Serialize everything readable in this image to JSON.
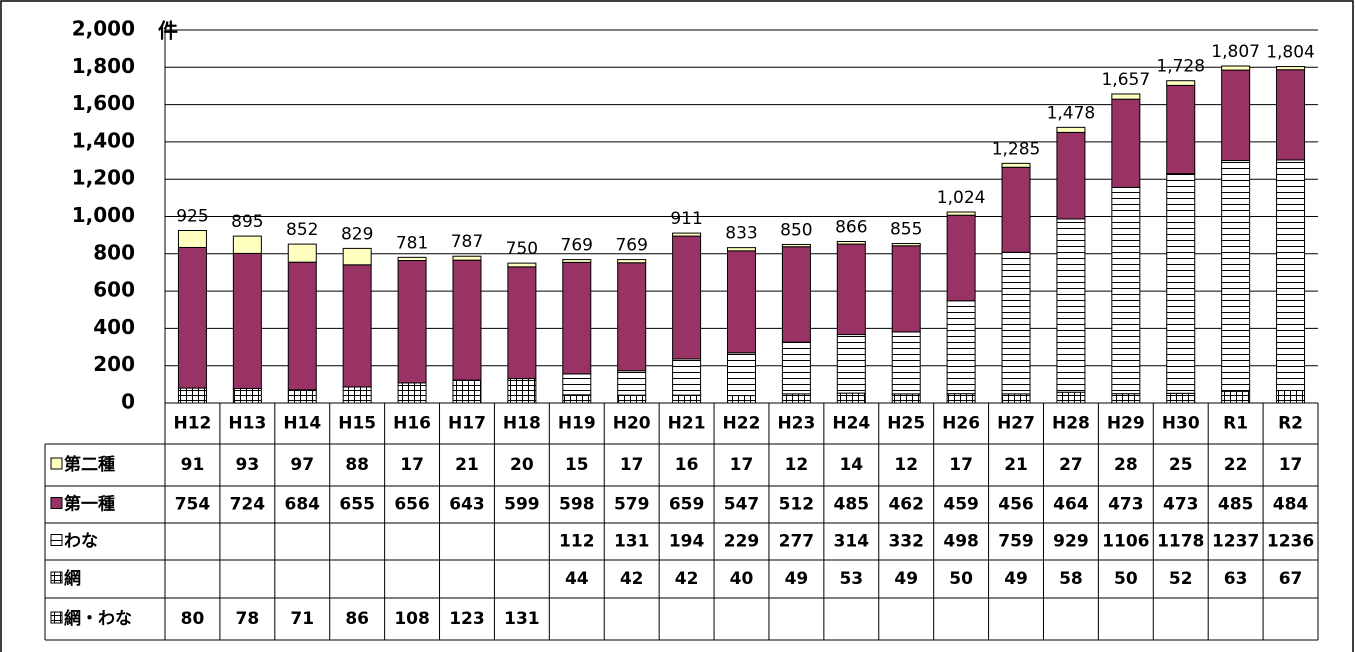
{
  "chart_data": {
    "type": "stacked_bar",
    "unit": "件",
    "categories": [
      "H12",
      "H13",
      "H14",
      "H15",
      "H16",
      "H17",
      "H18",
      "H19",
      "H20",
      "H21",
      "H22",
      "H23",
      "H24",
      "H25",
      "H26",
      "H27",
      "H28",
      "H29",
      "H30",
      "R1",
      "R2"
    ],
    "series": [
      {
        "name": "第二種",
        "color": "#ffffc0",
        "pattern": "solid",
        "values": [
          91,
          93,
          97,
          88,
          17,
          21,
          20,
          15,
          17,
          16,
          17,
          12,
          14,
          12,
          17,
          21,
          27,
          28,
          25,
          22,
          17
        ]
      },
      {
        "name": "第一種",
        "color": "#993366",
        "pattern": "solid",
        "values": [
          754,
          724,
          684,
          655,
          656,
          643,
          599,
          598,
          579,
          659,
          547,
          512,
          485,
          462,
          459,
          456,
          464,
          473,
          473,
          485,
          484
        ]
      },
      {
        "name": "わな",
        "color": "#ffffff",
        "pattern": "hlines",
        "values": [
          null,
          null,
          null,
          null,
          null,
          null,
          null,
          112,
          131,
          194,
          229,
          277,
          314,
          332,
          498,
          759,
          929,
          1106,
          1178,
          1237,
          1236
        ]
      },
      {
        "name": "網",
        "color": "#ffffff",
        "pattern": "grid",
        "values": [
          null,
          null,
          null,
          null,
          null,
          null,
          null,
          44,
          42,
          42,
          40,
          49,
          53,
          49,
          50,
          49,
          58,
          50,
          52,
          63,
          67
        ]
      },
      {
        "name": "網・わな",
        "color": "#ffffff",
        "pattern": "grid",
        "values": [
          80,
          78,
          71,
          86,
          108,
          123,
          131,
          null,
          null,
          null,
          null,
          null,
          null,
          null,
          null,
          null,
          null,
          null,
          null,
          null,
          null
        ]
      }
    ],
    "totals": {
      "values": [
        925,
        895,
        852,
        829,
        781,
        787,
        750,
        769,
        769,
        911,
        833,
        850,
        866,
        855,
        1024,
        1285,
        1478,
        1657,
        1728,
        1807,
        1804
      ],
      "value_labels": [
        "925",
        "895",
        "852",
        "829",
        "781",
        "787",
        "750",
        "769",
        "769",
        "911",
        "833",
        "850",
        "866",
        "855",
        "1,024",
        "1,285",
        "1,478",
        "1,657",
        "1,728",
        "1,807",
        "1,804"
      ]
    },
    "ylim": [
      0,
      2000
    ],
    "yticks": [
      0,
      200,
      400,
      600,
      800,
      {
        "value": 1000,
        "label": "1,000"
      },
      {
        "value": 1200,
        "label": "1,200"
      },
      {
        "value": 1400,
        "label": "1,400"
      },
      {
        "value": 1600,
        "label": "1,600"
      },
      {
        "value": 1800,
        "label": "1,800"
      },
      {
        "value": 2000,
        "label": "2,000"
      }
    ],
    "grid": true
  }
}
